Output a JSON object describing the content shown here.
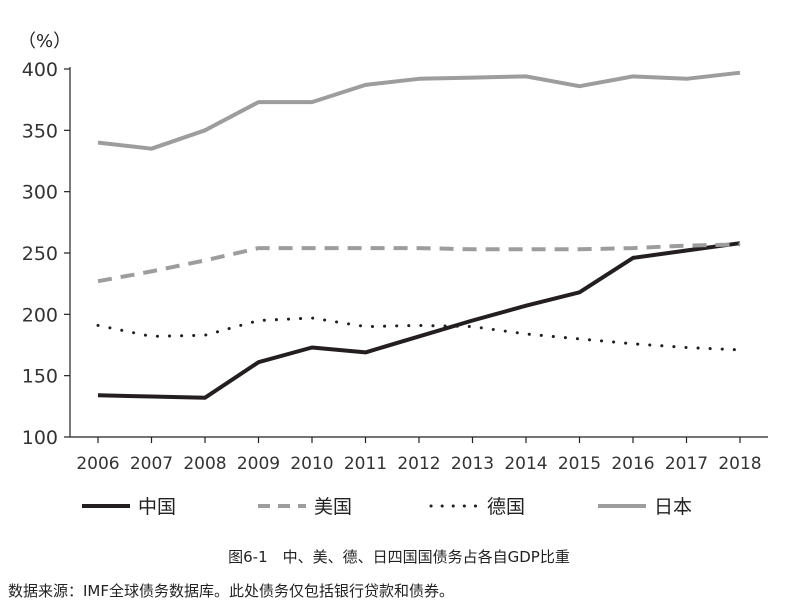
{
  "chart_data": {
    "type": "line",
    "unit_label": "（%）",
    "x": [
      "2006",
      "2007",
      "2008",
      "2009",
      "2010",
      "2011",
      "2012",
      "2013",
      "2014",
      "2015",
      "2016",
      "2017",
      "2018"
    ],
    "ylim": [
      100,
      400
    ],
    "yticks": [
      100,
      150,
      200,
      250,
      300,
      350,
      400
    ],
    "grid": false,
    "legend_position": "bottom",
    "series": [
      {
        "name": "中国",
        "color": "#231f20",
        "style": "solid",
        "width": 4,
        "values": [
          134,
          133,
          132,
          161,
          173,
          169,
          182,
          195,
          207,
          218,
          246,
          252,
          258
        ]
      },
      {
        "name": "美国",
        "color": "#9d9d9d",
        "style": "dashed",
        "width": 4,
        "values": [
          227,
          235,
          244,
          254,
          254,
          254,
          254,
          253,
          253,
          253,
          254,
          256,
          257
        ]
      },
      {
        "name": "德国",
        "color": "#231f20",
        "style": "dotted",
        "width": 3,
        "values": [
          191,
          182,
          183,
          195,
          197,
          190,
          191,
          190,
          184,
          180,
          176,
          173,
          171
        ]
      },
      {
        "name": "日本",
        "color": "#9d9d9d",
        "style": "solid",
        "width": 4,
        "values": [
          340,
          335,
          350,
          373,
          373,
          387,
          392,
          393,
          394,
          386,
          394,
          392,
          397
        ]
      }
    ]
  },
  "caption": "图6-1　中、美、德、日四国国债务占各自GDP比重",
  "source": "数据来源：IMF全球债务数据库。此处债务仅包括银行贷款和债券。"
}
